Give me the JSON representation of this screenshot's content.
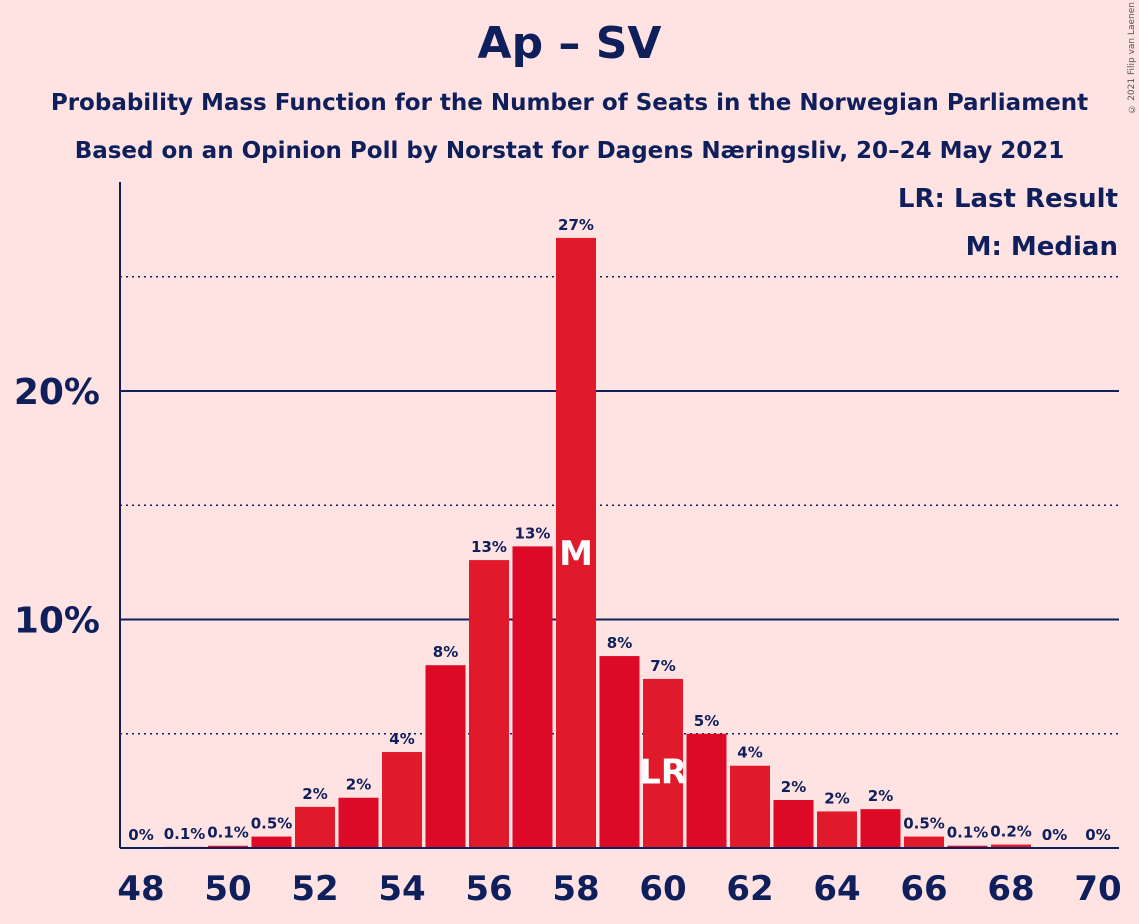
{
  "header": {
    "title": "Ap – SV",
    "subtitle_line1": "Probability Mass Function for the Number of Seats in the Norwegian Parliament",
    "subtitle_line2": "Based on an Opinion Poll by Norstat for Dagens Næringsliv, 20–24 May 2021"
  },
  "legend": {
    "last_result": "LR: Last Result",
    "median": "M: Median"
  },
  "copyright": "© 2021 Filip van Laenen",
  "colors": {
    "background": "#FFE3E3",
    "bar_a": "#E01A2A",
    "bar_b": "#DC0A26",
    "text": "#0E1F5C"
  },
  "chart_data": {
    "type": "bar",
    "xlabel": "",
    "ylabel": "",
    "ylim": [
      0,
      29
    ],
    "yticks": [
      10,
      20
    ],
    "ytick_labels": [
      "10%",
      "20%"
    ],
    "dotted_gridlines": [
      5,
      15,
      25
    ],
    "x_tick_labels": [
      "48",
      "50",
      "52",
      "54",
      "56",
      "58",
      "60",
      "62",
      "64",
      "66",
      "68",
      "70"
    ],
    "seats": [
      48,
      49,
      50,
      51,
      52,
      53,
      54,
      55,
      56,
      57,
      58,
      59,
      60,
      61,
      62,
      63,
      64,
      65,
      66,
      67,
      68,
      69,
      70
    ],
    "values": [
      0,
      0.05,
      0.1,
      0.5,
      1.8,
      2.2,
      4.2,
      8.0,
      12.6,
      13.2,
      26.7,
      8.4,
      7.4,
      5.0,
      3.6,
      2.1,
      1.6,
      1.7,
      0.5,
      0.1,
      0.15,
      0,
      0
    ],
    "labels": [
      "0%",
      "0.1%",
      "0.1%",
      "0.5%",
      "2%",
      "2%",
      "4%",
      "8%",
      "13%",
      "13%",
      "27%",
      "8%",
      "7%",
      "5%",
      "4%",
      "2%",
      "2%",
      "2%",
      "0.5%",
      "0.1%",
      "0.2%",
      "0%",
      "0%"
    ],
    "median_seat": 58,
    "median_marker": "M",
    "last_result_seat": 60,
    "last_result_marker": "LR"
  }
}
